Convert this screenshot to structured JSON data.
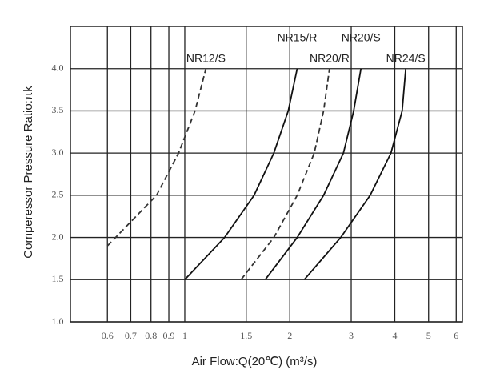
{
  "chart_data": {
    "type": "line",
    "y_label": "Comperessor Pressure Ratio:πk",
    "x_label": "Air Flow:Q(20℃)  (m³/s)",
    "x_scale": "log",
    "xlim": [
      0.47,
      6.25
    ],
    "xticks": [
      0.6,
      0.7,
      0.8,
      0.9,
      1,
      1.5,
      2,
      3,
      4,
      5,
      6
    ],
    "ylim": [
      1,
      4.5
    ],
    "yticks": [
      {
        "value": 1,
        "label": "1.0"
      },
      1.5,
      {
        "value": 2,
        "label": "2.0"
      },
      2.5,
      {
        "value": 3,
        "label": "3.0"
      },
      3.5,
      {
        "value": 4,
        "label": "4.0"
      }
    ],
    "grid": true,
    "series": [
      {
        "name": "NR12/S",
        "color": "#333333",
        "style": "dashed",
        "x": [
          0.6,
          0.83,
          0.96,
          1.07,
          1.15
        ],
        "values": [
          1.9,
          2.5,
          3,
          3.5,
          4
        ]
      },
      {
        "name": "NR15/R",
        "color": "#111111",
        "style": "solid",
        "x": [
          1.0,
          1.3,
          1.58,
          1.8,
          1.98,
          2.1
        ],
        "values": [
          1.5,
          2,
          2.5,
          3,
          3.5,
          4
        ]
      },
      {
        "name": "NR20/R",
        "color": "#333333",
        "style": "dashed",
        "x": [
          1.45,
          1.8,
          2.1,
          2.35,
          2.5,
          2.6
        ],
        "values": [
          1.5,
          2,
          2.5,
          3,
          3.5,
          4
        ]
      },
      {
        "name": "NR20/S",
        "color": "#111111",
        "style": "solid",
        "x": [
          1.7,
          2.1,
          2.5,
          2.85,
          3.05,
          3.2
        ],
        "values": [
          1.5,
          2,
          2.5,
          3,
          3.5,
          4
        ]
      },
      {
        "name": "NR24/S",
        "color": "#111111",
        "style": "solid",
        "x": [
          2.2,
          2.8,
          3.4,
          3.9,
          4.2,
          4.3
        ],
        "values": [
          1.5,
          2,
          2.5,
          3,
          3.5,
          4
        ]
      }
    ]
  }
}
